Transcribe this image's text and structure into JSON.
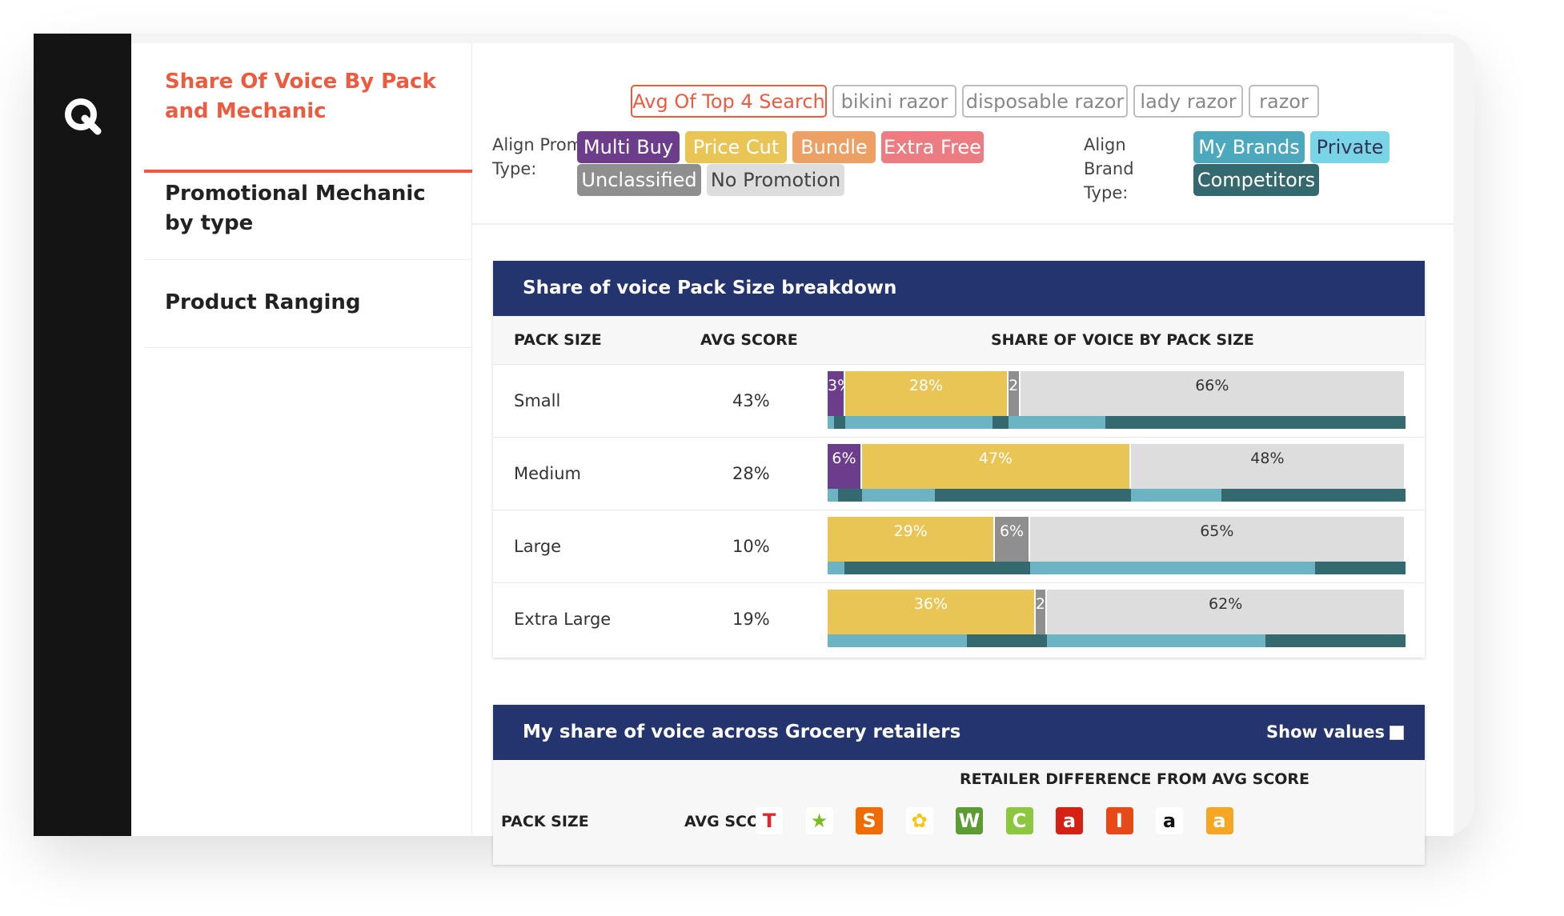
{
  "nav": {
    "items": [
      {
        "label": "Share Of Voice By Pack and Mechanic",
        "active": true
      },
      {
        "label": "Promotional Mechanic by type",
        "active": false
      },
      {
        "label": "Product Ranging",
        "active": false
      }
    ]
  },
  "search_chips": [
    {
      "label": "Avg Of Top 4 Search",
      "selected": true
    },
    {
      "label": "bikini razor",
      "selected": false
    },
    {
      "label": "disposable razor",
      "selected": false
    },
    {
      "label": "lady razor",
      "selected": false
    },
    {
      "label": "razor",
      "selected": false
    }
  ],
  "promo_filter": {
    "label": "Align Promo Type:",
    "chips": [
      {
        "label": "Multi Buy",
        "color": "#6b3d8b"
      },
      {
        "label": "Price Cut",
        "color": "#e9c556"
      },
      {
        "label": "Bundle",
        "color": "#eca064"
      },
      {
        "label": "Extra Free",
        "color": "#ed7b82"
      },
      {
        "label": "Unclassified",
        "color": "#8f8f8f"
      },
      {
        "label": "No Promotion",
        "color": "#dddddd"
      }
    ]
  },
  "brand_filter": {
    "label": "Align Brand Type:",
    "chips": [
      {
        "label": "My Brands",
        "color": "#4ca8bd"
      },
      {
        "label": "Private",
        "color": "#79d4e6"
      },
      {
        "label": "Competitors",
        "color": "#356970"
      }
    ]
  },
  "pack_card": {
    "title": "Share of voice Pack Size breakdown",
    "headers": {
      "pack_size": "PACK SIZE",
      "avg_score": "AVG SCORE",
      "share": "SHARE OF VOICE BY PACK SIZE"
    }
  },
  "chart_data": {
    "type": "bar",
    "stacked": true,
    "categories": [
      "Small",
      "Medium",
      "Large",
      "Extra Large"
    ],
    "avg_score": [
      "43%",
      "28%",
      "10%",
      "19%"
    ],
    "series": [
      {
        "name": "Multi Buy",
        "color": "#6b3d8b",
        "values": [
          3,
          6,
          0,
          0
        ]
      },
      {
        "name": "Price Cut",
        "color": "#e9c556",
        "values": [
          28,
          47,
          29,
          36
        ]
      },
      {
        "name": "Unclassified",
        "color": "#8f8f8f",
        "values": [
          2,
          0,
          6,
          2
        ]
      },
      {
        "name": "No Promotion",
        "color": "#dddddd",
        "values": [
          66,
          48,
          65,
          62
        ]
      }
    ],
    "labels": [
      [
        "3%",
        "28%",
        "2%",
        "66%"
      ],
      [
        "6%",
        "47%",
        "",
        "48%"
      ],
      [
        "",
        "29%",
        "6%",
        "65%"
      ],
      [
        "",
        "36%",
        "2%",
        "62%"
      ]
    ],
    "brand_bars": [
      [
        [
          0,
          3,
          35
        ],
        [
          3,
          28,
          90
        ],
        [
          31,
          2,
          100
        ],
        [
          33,
          66,
          22
        ]
      ],
      [
        [
          0,
          6,
          30
        ],
        [
          6,
          47,
          27
        ],
        [
          53,
          0,
          0
        ],
        [
          53,
          48,
          33
        ]
      ],
      [
        [
          0,
          0,
          0
        ],
        [
          0,
          29,
          10
        ],
        [
          29,
          6,
          0
        ],
        [
          35,
          65,
          76
        ]
      ],
      [
        [
          0,
          0,
          0
        ],
        [
          0,
          36,
          67
        ],
        [
          36,
          2,
          0
        ],
        [
          38,
          62,
          61
        ]
      ]
    ]
  },
  "retail_card": {
    "title": "My share of voice across Grocery retailers",
    "show_values": "Show values",
    "sub_header": "RETAILER DIFFERENCE FROM AVG SCORE",
    "headers": {
      "pack_size": "PACK SIZE",
      "avg_score": "AVG SCORE"
    },
    "retailer_icons": [
      {
        "name": "tesco-icon",
        "glyph": "T",
        "bg": "#ffffff",
        "fg": "#e3262d"
      },
      {
        "name": "asda-icon",
        "glyph": "★",
        "bg": "#ffffff",
        "fg": "#78be20"
      },
      {
        "name": "sainsburys-icon",
        "glyph": "S",
        "bg": "#f06c00",
        "fg": "#ffffff"
      },
      {
        "name": "morrisons-icon",
        "glyph": "✿",
        "bg": "#ffffff",
        "fg": "#f5c518"
      },
      {
        "name": "waitrose-icon",
        "glyph": "W",
        "bg": "#5c9c33",
        "fg": "#ffffff"
      },
      {
        "name": "ocado-icon",
        "glyph": "C",
        "bg": "#8dc63f",
        "fg": "#ffffff"
      },
      {
        "name": "argos-icon",
        "glyph": "a",
        "bg": "#d42114",
        "fg": "#ffffff"
      },
      {
        "name": "iceland-icon",
        "glyph": "I",
        "bg": "#e64a19",
        "fg": "#ffffff"
      },
      {
        "name": "amazon-icon",
        "glyph": "a",
        "bg": "#ffffff",
        "fg": "#111111"
      },
      {
        "name": "amazon-fresh-icon",
        "glyph": "a",
        "bg": "#f5a623",
        "fg": "#ffffff"
      }
    ]
  },
  "colors": {
    "accent": "#ee5a3e",
    "header": "#24346f",
    "my_brands": "#6cb3c3",
    "competitors": "#356970"
  }
}
